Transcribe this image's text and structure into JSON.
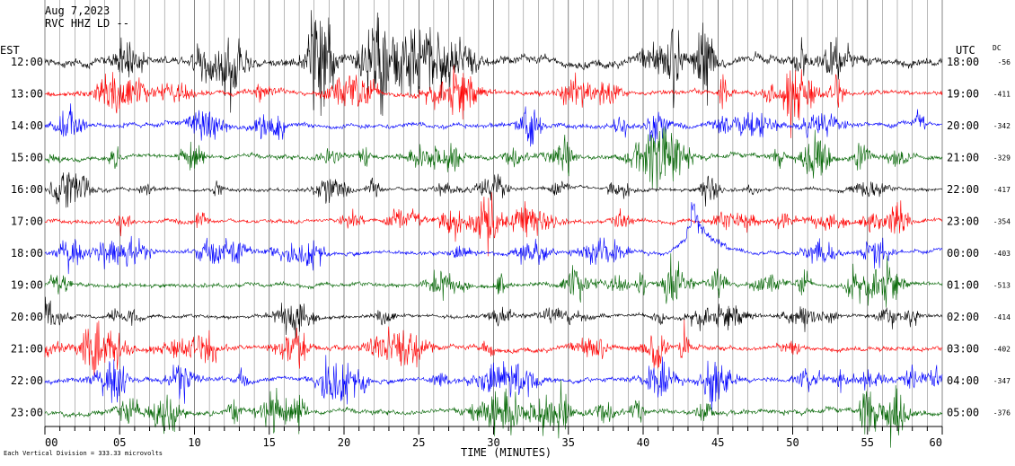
{
  "header": {
    "date": "Aug 7,2023",
    "station": "RVC HHZ LD --"
  },
  "colors": {
    "traces": [
      "#000000",
      "#ff0000",
      "#0000ff",
      "#006400"
    ],
    "axis": "#000000",
    "grid": "#000000"
  },
  "chart_data": {
    "type": "line",
    "title": "",
    "left_axis_title": "EST",
    "right_axis_title": "UTC",
    "dc_header": "DC",
    "xlabel": "TIME (MINUTES)",
    "xlim": [
      0,
      60
    ],
    "x_ticks": [
      0,
      5,
      10,
      15,
      20,
      25,
      30,
      35,
      40,
      45,
      50,
      55,
      60
    ],
    "x_tick_labels": [
      "00",
      "05",
      "10",
      "15",
      "20",
      "25",
      "30",
      "35",
      "40",
      "45",
      "50",
      "55",
      "60"
    ],
    "scale_note": "Each Vertical Division = 333.33 microvolts",
    "rows": [
      {
        "est": "12:00",
        "utc": "18:00",
        "dc": "-56",
        "color": "#000000",
        "amplitude": 2.2
      },
      {
        "est": "13:00",
        "utc": "19:00",
        "dc": "-411",
        "color": "#ff0000",
        "amplitude": 1.4
      },
      {
        "est": "14:00",
        "utc": "20:00",
        "dc": "-342",
        "color": "#0000ff",
        "amplitude": 1.3
      },
      {
        "est": "15:00",
        "utc": "21:00",
        "dc": "-329",
        "color": "#006400",
        "amplitude": 1.3
      },
      {
        "est": "16:00",
        "utc": "22:00",
        "dc": "-417",
        "color": "#000000",
        "amplitude": 1.0
      },
      {
        "est": "17:00",
        "utc": "23:00",
        "dc": "-354",
        "color": "#ff0000",
        "amplitude": 1.1
      },
      {
        "est": "18:00",
        "utc": "00:00",
        "dc": "-403",
        "color": "#0000ff",
        "amplitude": 1.1
      },
      {
        "est": "19:00",
        "utc": "01:00",
        "dc": "-513",
        "color": "#006400",
        "amplitude": 1.2
      },
      {
        "est": "20:00",
        "utc": "02:00",
        "dc": "-414",
        "color": "#000000",
        "amplitude": 1.0
      },
      {
        "est": "21:00",
        "utc": "03:00",
        "dc": "-402",
        "color": "#ff0000",
        "amplitude": 1.3
      },
      {
        "est": "22:00",
        "utc": "04:00",
        "dc": "-347",
        "color": "#0000ff",
        "amplitude": 1.3
      },
      {
        "est": "23:00",
        "utc": "05:00",
        "dc": "-376",
        "color": "#006400",
        "amplitude": 1.4
      }
    ],
    "events": [
      {
        "row": 6,
        "minute": 43.2,
        "label": "large transient"
      }
    ]
  }
}
